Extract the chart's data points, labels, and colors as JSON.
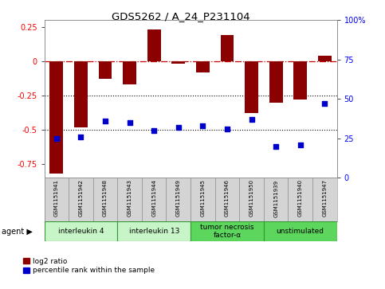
{
  "title": "GDS5262 / A_24_P231104",
  "samples": [
    "GSM1151941",
    "GSM1151942",
    "GSM1151948",
    "GSM1151943",
    "GSM1151944",
    "GSM1151949",
    "GSM1151945",
    "GSM1151946",
    "GSM1151950",
    "GSM1151939",
    "GSM1151940",
    "GSM1151947"
  ],
  "log2_ratio": [
    -0.82,
    -0.48,
    -0.13,
    -0.17,
    0.23,
    -0.02,
    -0.08,
    0.19,
    -0.38,
    -0.3,
    -0.28,
    0.04
  ],
  "percentile": [
    25,
    26,
    36,
    35,
    30,
    32,
    33,
    31,
    37,
    20,
    21,
    47
  ],
  "agents": [
    {
      "label": "interleukin 4",
      "start": 0,
      "end": 2,
      "color": "#c8f5c8"
    },
    {
      "label": "interleukin 13",
      "start": 3,
      "end": 5,
      "color": "#c8f5c8"
    },
    {
      "label": "tumor necrosis\nfactor-α",
      "start": 6,
      "end": 8,
      "color": "#5cd65c"
    },
    {
      "label": "unstimulated",
      "start": 9,
      "end": 11,
      "color": "#5cd65c"
    }
  ],
  "bar_color": "#8B0000",
  "dot_color": "#0000CC",
  "ylim_left": [
    -0.85,
    0.3
  ],
  "ylim_right": [
    0,
    100
  ],
  "left_ticks": [
    -0.75,
    -0.5,
    -0.25,
    0,
    0.25
  ],
  "right_ticks": [
    0,
    25,
    50,
    75,
    100
  ],
  "dotted_lines": [
    -0.25,
    -0.5
  ],
  "plot_bg": "#ffffff",
  "sample_bg": "#d4d4d4",
  "bar_width": 0.55
}
